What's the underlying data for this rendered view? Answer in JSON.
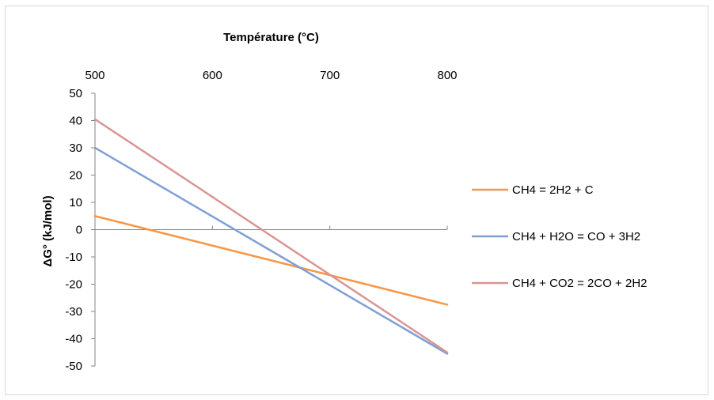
{
  "chart_data": {
    "type": "line",
    "xlabel": "Température (°C)",
    "ylabel": "ΔG° (kJ/mol)",
    "xlim": [
      500,
      800
    ],
    "ylim": [
      -50,
      50
    ],
    "x_ticks": [
      500,
      600,
      700,
      800
    ],
    "y_ticks": [
      50,
      40,
      30,
      20,
      10,
      0,
      -10,
      -20,
      -30,
      -40,
      -50
    ],
    "x_axis_position": "top",
    "grid": false,
    "legend_position": "right",
    "series": [
      {
        "name": "CH4 = 2H2 + C",
        "color": "#f79646",
        "x": [
          500,
          800
        ],
        "y": [
          5,
          -27.5
        ]
      },
      {
        "name": "CH4 + H2O = CO + 3H2",
        "color": "#7f9fd5",
        "x": [
          500,
          800
        ],
        "y": [
          30,
          -45.5
        ]
      },
      {
        "name": "CH4 + CO2 = 2CO + 2H2",
        "color": "#d99594",
        "x": [
          500,
          800
        ],
        "y": [
          40.5,
          -45
        ]
      }
    ]
  }
}
